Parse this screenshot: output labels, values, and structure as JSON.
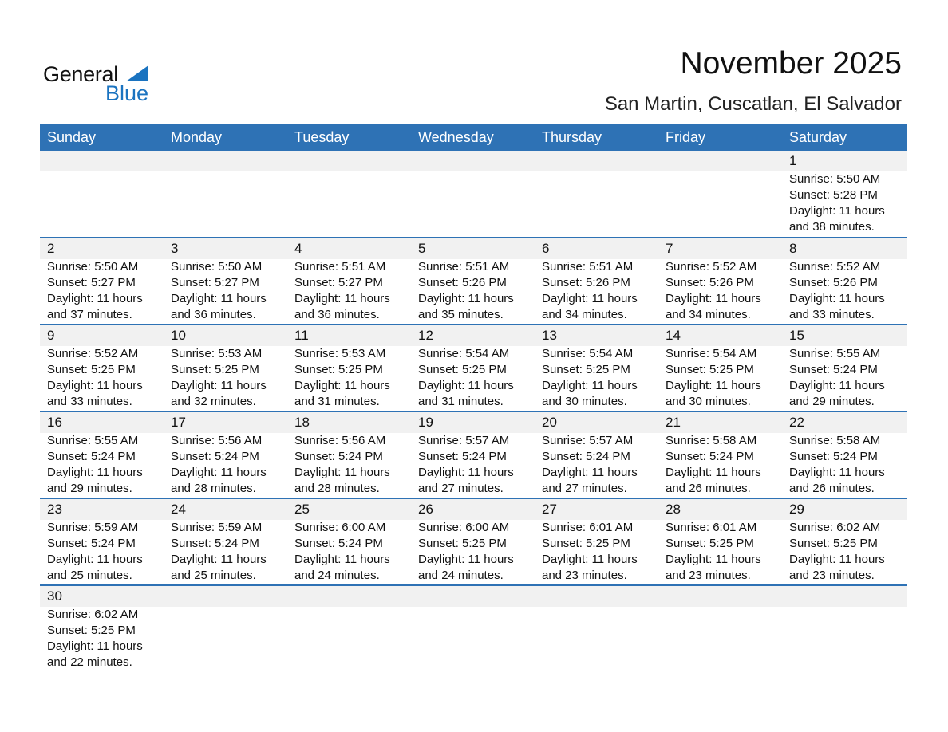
{
  "logo": {
    "text1": "General",
    "text2": "Blue"
  },
  "title": "November 2025",
  "location": "San Martin, Cuscatlan, El Salvador",
  "weekdays": [
    "Sunday",
    "Monday",
    "Tuesday",
    "Wednesday",
    "Thursday",
    "Friday",
    "Saturday"
  ],
  "first_weekday_offset": 6,
  "days": [
    {
      "day": "1",
      "sunrise": "Sunrise: 5:50 AM",
      "sunset": "Sunset: 5:28 PM",
      "daylight": "Daylight: 11 hours",
      "minutes": "and 38 minutes."
    },
    {
      "day": "2",
      "sunrise": "Sunrise: 5:50 AM",
      "sunset": "Sunset: 5:27 PM",
      "daylight": "Daylight: 11 hours",
      "minutes": "and 37 minutes."
    },
    {
      "day": "3",
      "sunrise": "Sunrise: 5:50 AM",
      "sunset": "Sunset: 5:27 PM",
      "daylight": "Daylight: 11 hours",
      "minutes": "and 36 minutes."
    },
    {
      "day": "4",
      "sunrise": "Sunrise: 5:51 AM",
      "sunset": "Sunset: 5:27 PM",
      "daylight": "Daylight: 11 hours",
      "minutes": "and 36 minutes."
    },
    {
      "day": "5",
      "sunrise": "Sunrise: 5:51 AM",
      "sunset": "Sunset: 5:26 PM",
      "daylight": "Daylight: 11 hours",
      "minutes": "and 35 minutes."
    },
    {
      "day": "6",
      "sunrise": "Sunrise: 5:51 AM",
      "sunset": "Sunset: 5:26 PM",
      "daylight": "Daylight: 11 hours",
      "minutes": "and 34 minutes."
    },
    {
      "day": "7",
      "sunrise": "Sunrise: 5:52 AM",
      "sunset": "Sunset: 5:26 PM",
      "daylight": "Daylight: 11 hours",
      "minutes": "and 34 minutes."
    },
    {
      "day": "8",
      "sunrise": "Sunrise: 5:52 AM",
      "sunset": "Sunset: 5:26 PM",
      "daylight": "Daylight: 11 hours",
      "minutes": "and 33 minutes."
    },
    {
      "day": "9",
      "sunrise": "Sunrise: 5:52 AM",
      "sunset": "Sunset: 5:25 PM",
      "daylight": "Daylight: 11 hours",
      "minutes": "and 33 minutes."
    },
    {
      "day": "10",
      "sunrise": "Sunrise: 5:53 AM",
      "sunset": "Sunset: 5:25 PM",
      "daylight": "Daylight: 11 hours",
      "minutes": "and 32 minutes."
    },
    {
      "day": "11",
      "sunrise": "Sunrise: 5:53 AM",
      "sunset": "Sunset: 5:25 PM",
      "daylight": "Daylight: 11 hours",
      "minutes": "and 31 minutes."
    },
    {
      "day": "12",
      "sunrise": "Sunrise: 5:54 AM",
      "sunset": "Sunset: 5:25 PM",
      "daylight": "Daylight: 11 hours",
      "minutes": "and 31 minutes."
    },
    {
      "day": "13",
      "sunrise": "Sunrise: 5:54 AM",
      "sunset": "Sunset: 5:25 PM",
      "daylight": "Daylight: 11 hours",
      "minutes": "and 30 minutes."
    },
    {
      "day": "14",
      "sunrise": "Sunrise: 5:54 AM",
      "sunset": "Sunset: 5:25 PM",
      "daylight": "Daylight: 11 hours",
      "minutes": "and 30 minutes."
    },
    {
      "day": "15",
      "sunrise": "Sunrise: 5:55 AM",
      "sunset": "Sunset: 5:24 PM",
      "daylight": "Daylight: 11 hours",
      "minutes": "and 29 minutes."
    },
    {
      "day": "16",
      "sunrise": "Sunrise: 5:55 AM",
      "sunset": "Sunset: 5:24 PM",
      "daylight": "Daylight: 11 hours",
      "minutes": "and 29 minutes."
    },
    {
      "day": "17",
      "sunrise": "Sunrise: 5:56 AM",
      "sunset": "Sunset: 5:24 PM",
      "daylight": "Daylight: 11 hours",
      "minutes": "and 28 minutes."
    },
    {
      "day": "18",
      "sunrise": "Sunrise: 5:56 AM",
      "sunset": "Sunset: 5:24 PM",
      "daylight": "Daylight: 11 hours",
      "minutes": "and 28 minutes."
    },
    {
      "day": "19",
      "sunrise": "Sunrise: 5:57 AM",
      "sunset": "Sunset: 5:24 PM",
      "daylight": "Daylight: 11 hours",
      "minutes": "and 27 minutes."
    },
    {
      "day": "20",
      "sunrise": "Sunrise: 5:57 AM",
      "sunset": "Sunset: 5:24 PM",
      "daylight": "Daylight: 11 hours",
      "minutes": "and 27 minutes."
    },
    {
      "day": "21",
      "sunrise": "Sunrise: 5:58 AM",
      "sunset": "Sunset: 5:24 PM",
      "daylight": "Daylight: 11 hours",
      "minutes": "and 26 minutes."
    },
    {
      "day": "22",
      "sunrise": "Sunrise: 5:58 AM",
      "sunset": "Sunset: 5:24 PM",
      "daylight": "Daylight: 11 hours",
      "minutes": "and 26 minutes."
    },
    {
      "day": "23",
      "sunrise": "Sunrise: 5:59 AM",
      "sunset": "Sunset: 5:24 PM",
      "daylight": "Daylight: 11 hours",
      "minutes": "and 25 minutes."
    },
    {
      "day": "24",
      "sunrise": "Sunrise: 5:59 AM",
      "sunset": "Sunset: 5:24 PM",
      "daylight": "Daylight: 11 hours",
      "minutes": "and 25 minutes."
    },
    {
      "day": "25",
      "sunrise": "Sunrise: 6:00 AM",
      "sunset": "Sunset: 5:24 PM",
      "daylight": "Daylight: 11 hours",
      "minutes": "and 24 minutes."
    },
    {
      "day": "26",
      "sunrise": "Sunrise: 6:00 AM",
      "sunset": "Sunset: 5:25 PM",
      "daylight": "Daylight: 11 hours",
      "minutes": "and 24 minutes."
    },
    {
      "day": "27",
      "sunrise": "Sunrise: 6:01 AM",
      "sunset": "Sunset: 5:25 PM",
      "daylight": "Daylight: 11 hours",
      "minutes": "and 23 minutes."
    },
    {
      "day": "28",
      "sunrise": "Sunrise: 6:01 AM",
      "sunset": "Sunset: 5:25 PM",
      "daylight": "Daylight: 11 hours",
      "minutes": "and 23 minutes."
    },
    {
      "day": "29",
      "sunrise": "Sunrise: 6:02 AM",
      "sunset": "Sunset: 5:25 PM",
      "daylight": "Daylight: 11 hours",
      "minutes": "and 23 minutes."
    },
    {
      "day": "30",
      "sunrise": "Sunrise: 6:02 AM",
      "sunset": "Sunset: 5:25 PM",
      "daylight": "Daylight: 11 hours",
      "minutes": "and 22 minutes."
    }
  ],
  "colors": {
    "header": "#2e72b5",
    "band": "#f1f1f1",
    "brand": "#1a73c0"
  }
}
